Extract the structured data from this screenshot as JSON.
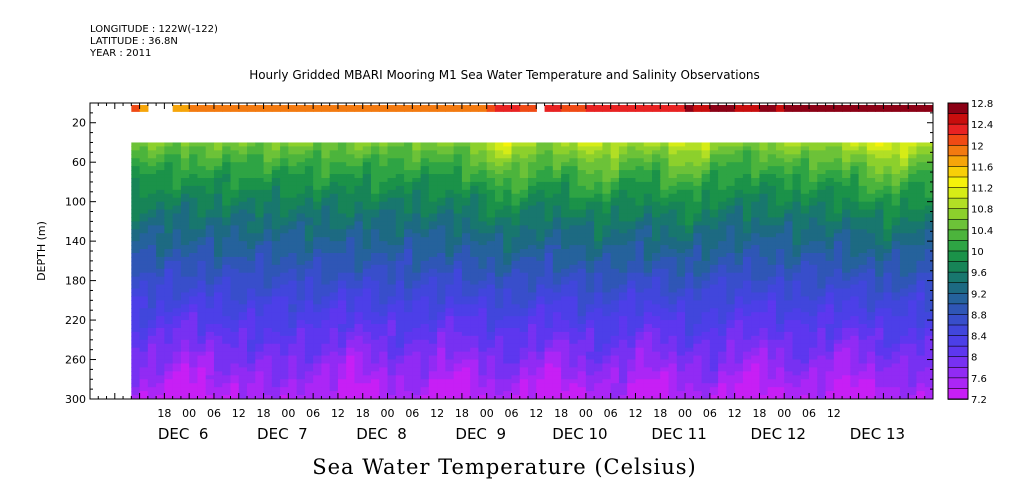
{
  "header": {
    "longitude": "LONGITUDE : 122W(-122)",
    "latitude": "LATITUDE : 36.8N",
    "year": "YEAR : 2011"
  },
  "chart_data": {
    "type": "heatmap",
    "title": "Hourly Gridded MBARI Mooring M1 Sea Water Temperature and Salinity Observations",
    "xlabel": "Sea Water Temperature (Celsius)",
    "ylabel": "DEPTH (m)",
    "x_hours": [
      "18",
      "00",
      "06",
      "12",
      "18",
      "00",
      "06",
      "12",
      "18",
      "00",
      "06",
      "12",
      "18",
      "00",
      "06",
      "12",
      "18",
      "00",
      "06",
      "12",
      "18",
      "00",
      "06",
      "12",
      "18",
      "00",
      "06",
      "12"
    ],
    "x_days": [
      "DEC  6",
      "DEC  7",
      "DEC  8",
      "DEC  9",
      "DEC 10",
      "DEC 11",
      "DEC 12",
      "DEC 13"
    ],
    "xlim_hours_from_dec6_00": [
      -24,
      180
    ],
    "data_start_hour": -14,
    "ylim": [
      300,
      0
    ],
    "yticks": [
      20,
      60,
      100,
      140,
      180,
      220,
      260,
      300
    ],
    "colorbar_labels": [
      "12.8",
      "12.4",
      "12",
      "11.6",
      "11.2",
      "10.8",
      "10.4",
      "10",
      "9.6",
      "9.2",
      "8.8",
      "8.4",
      "8",
      "7.6",
      "7.2"
    ],
    "colorbar_range": [
      7.2,
      12.8
    ],
    "levels": 28,
    "surface_depth_m": 2,
    "surface_temp_by_day": [
      11.8,
      11.9,
      11.9,
      11.9,
      12.2,
      12.3,
      12.6,
      12.8
    ],
    "gap_depth_range_m": [
      15,
      40
    ],
    "temp_at_40m": 10.6,
    "temp_at_300m": 7.5,
    "warm_events_hours": [
      77,
      99,
      120,
      168
    ],
    "cold_bottom_hours": [
      0,
      40,
      64,
      88,
      112,
      137,
      160
    ]
  }
}
